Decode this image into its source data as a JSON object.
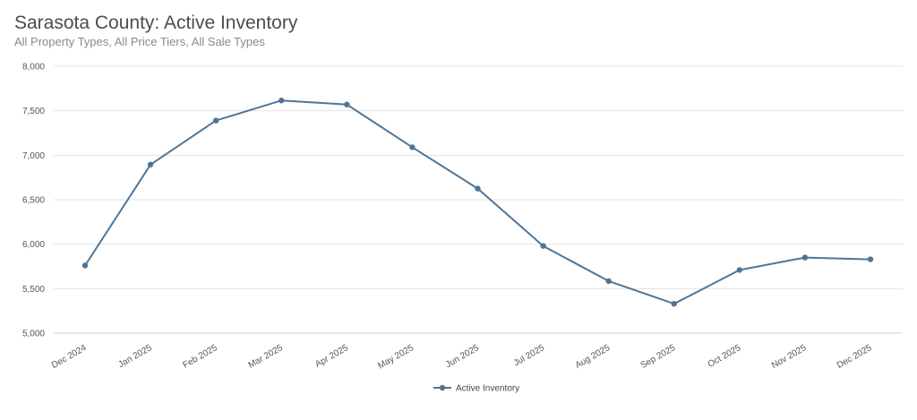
{
  "header": {
    "title": "Sarasota County: Active Inventory",
    "subtitle": "All Property Types, All Price Tiers, All Sale Types"
  },
  "chart_data": {
    "type": "line",
    "title": "Sarasota County: Active Inventory",
    "subtitle": "All Property Types, All Price Tiers, All Sale Types",
    "categories": [
      "Dec 2024",
      "Jan 2025",
      "Feb 2025",
      "Mar 2025",
      "Apr 2025",
      "May 2025",
      "Jun 2025",
      "Jul 2025",
      "Aug 2025",
      "Sep 2025",
      "Oct 2025",
      "Nov 2025",
      "Dec 2025"
    ],
    "series": [
      {
        "name": "Active Inventory",
        "color": "#4f7596",
        "values": [
          5760,
          6895,
          7390,
          7615,
          7570,
          7090,
          6625,
          5980,
          5585,
          5330,
          5710,
          5850,
          5830
        ]
      }
    ],
    "ylim": [
      5000,
      8000
    ],
    "yticks": [
      "5,000",
      "5,500",
      "6,000",
      "6,500",
      "7,000",
      "7,500",
      "8,000"
    ],
    "ytick_values": [
      5000,
      5500,
      6000,
      6500,
      7000,
      7500,
      8000
    ],
    "xlabel": "",
    "ylabel": "",
    "grid": true,
    "legend_position": "bottom-center"
  }
}
